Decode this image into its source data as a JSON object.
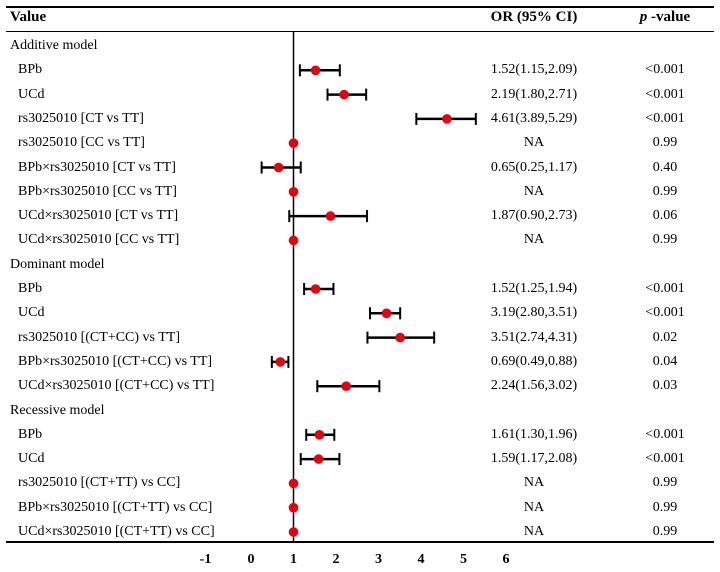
{
  "header": {
    "variable": "Value",
    "or": "OR (95% CI)",
    "p_italic": "p",
    "p_rest": " -value"
  },
  "colors": {
    "point": "#e8000d",
    "line": "#000000"
  },
  "chart_data": {
    "type": "forest",
    "title": "",
    "xlabel": "",
    "ylabel": "",
    "reference_line": 1,
    "xlim": [
      -1,
      6
    ],
    "x_ticks": [
      "-1",
      "0",
      "1",
      "2",
      "3",
      "4",
      "5",
      "6"
    ],
    "sections": [
      {
        "title": "Additive model",
        "rows": [
          {
            "label": "BPb",
            "or": 1.52,
            "low": 1.15,
            "high": 2.09,
            "or_text": "1.52(1.15,2.09)",
            "p": "<0.001"
          },
          {
            "label": "UCd",
            "or": 2.19,
            "low": 1.8,
            "high": 2.71,
            "or_text": "2.19(1.80,2.71)",
            "p": "<0.001"
          },
          {
            "label": "rs3025010 [CT vs TT]",
            "or": 4.61,
            "low": 3.89,
            "high": 5.29,
            "or_text": "4.61(3.89,5.29)",
            "p": "<0.001"
          },
          {
            "label": "rs3025010 [CC vs TT]",
            "or": 1,
            "low": null,
            "high": null,
            "or_text": "NA",
            "p": "0.99"
          },
          {
            "label": "BPb×rs3025010 [CT vs TT]",
            "or": 0.65,
            "low": 0.25,
            "high": 1.17,
            "or_text": "0.65(0.25,1.17)",
            "p": "0.40"
          },
          {
            "label": "BPb×rs3025010 [CC vs TT]",
            "or": 1,
            "low": null,
            "high": null,
            "or_text": "NA",
            "p": "0.99"
          },
          {
            "label": "UCd×rs3025010 [CT vs TT]",
            "or": 1.87,
            "low": 0.9,
            "high": 2.73,
            "or_text": "1.87(0.90,2.73)",
            "p": "0.06"
          },
          {
            "label": "UCd×rs3025010 [CC vs TT]",
            "or": 1,
            "low": null,
            "high": null,
            "or_text": "NA",
            "p": "0.99"
          }
        ]
      },
      {
        "title": "Dominant model",
        "rows": [
          {
            "label": "BPb",
            "or": 1.52,
            "low": 1.25,
            "high": 1.94,
            "or_text": "1.52(1.25,1.94)",
            "p": "<0.001"
          },
          {
            "label": "UCd",
            "or": 3.19,
            "low": 2.8,
            "high": 3.51,
            "or_text": "3.19(2.80,3.51)",
            "p": "<0.001"
          },
          {
            "label": "rs3025010 [(CT+CC) vs TT]",
            "or": 3.51,
            "low": 2.74,
            "high": 4.31,
            "or_text": "3.51(2.74,4.31)",
            "p": "0.02"
          },
          {
            "label": "BPb×rs3025010 [(CT+CC) vs TT]",
            "or": 0.69,
            "low": 0.49,
            "high": 0.88,
            "or_text": "0.69(0.49,0.88)",
            "p": "0.04"
          },
          {
            "label": "UCd×rs3025010 [(CT+CC) vs TT]",
            "or": 2.24,
            "low": 1.56,
            "high": 3.02,
            "or_text": "2.24(1.56,3.02)",
            "p": "0.03"
          }
        ]
      },
      {
        "title": "Recessive model",
        "rows": [
          {
            "label": "BPb",
            "or": 1.61,
            "low": 1.3,
            "high": 1.96,
            "or_text": "1.61(1.30,1.96)",
            "p": "<0.001"
          },
          {
            "label": "UCd",
            "or": 1.59,
            "low": 1.17,
            "high": 2.08,
            "or_text": "1.59(1.17,2.08)",
            "p": "<0.001"
          },
          {
            "label": "rs3025010 [(CT+TT) vs CC]",
            "or": 1,
            "low": null,
            "high": null,
            "or_text": "NA",
            "p": "0.99"
          },
          {
            "label": "BPb×rs3025010 [(CT+TT) vs CC]",
            "or": 1,
            "low": null,
            "high": null,
            "or_text": "NA",
            "p": "0.99"
          },
          {
            "label": "UCd×rs3025010 [(CT+TT) vs CC]",
            "or": 1,
            "low": null,
            "high": null,
            "or_text": "NA",
            "p": "0.99"
          }
        ]
      }
    ]
  }
}
